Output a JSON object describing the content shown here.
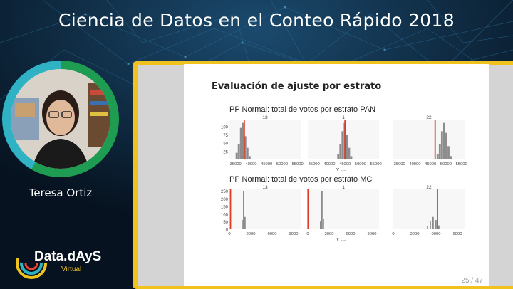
{
  "header": {
    "title": "Ciencia de Datos en el Conteo Rápido 2018"
  },
  "speaker": {
    "name": "Teresa Ortiz"
  },
  "brand": {
    "name": "Data.dAyS",
    "sub": "Virtual",
    "colors": {
      "yellow": "#f0c21e",
      "green": "#1e9d52",
      "teal": "#2fb3c4",
      "red": "#e8452c"
    }
  },
  "slide": {
    "title": "Evaluación de ajuste por estrato",
    "page": "25 / 47",
    "xlabel_main": "y",
    "xlabel_sub": "rep"
  },
  "chart_data": [
    {
      "type": "histogram",
      "title": "PP Normal: total de votos por estrato PAN",
      "yticks": [
        25,
        50,
        75,
        100
      ],
      "xlabel": "yrep",
      "panels": [
        {
          "strata": "13",
          "xticks": [
            35000,
            40000,
            45000,
            50000,
            55000
          ],
          "observed": 37800,
          "bins": [
            [
              35000,
              20
            ],
            [
              35700,
              45
            ],
            [
              36400,
              95
            ],
            [
              37100,
              110
            ],
            [
              37800,
              70
            ],
            [
              38500,
              35
            ],
            [
              39200,
              10
            ]
          ]
        },
        {
          "strata": "1",
          "xticks": [
            35000,
            40000,
            45000,
            50000,
            55000
          ],
          "observed": 45000,
          "bins": [
            [
              42500,
              15
            ],
            [
              43200,
              45
            ],
            [
              43900,
              85
            ],
            [
              44600,
              110
            ],
            [
              45300,
              75
            ],
            [
              46000,
              35
            ],
            [
              46700,
              10
            ]
          ]
        },
        {
          "strata": "22",
          "xticks": [
            35000,
            40000,
            45000,
            50000,
            55000
          ],
          "observed": 46500,
          "bins": [
            [
              47000,
              15
            ],
            [
              47700,
              45
            ],
            [
              48400,
              85
            ],
            [
              49100,
              110
            ],
            [
              49800,
              80
            ],
            [
              50500,
              40
            ],
            [
              51200,
              10
            ]
          ]
        }
      ]
    },
    {
      "type": "histogram",
      "title": "PP Normal: total de votos por estrato MC",
      "yticks": [
        0,
        50,
        100,
        150,
        200,
        250
      ],
      "xlabel": "yrep",
      "panels": [
        {
          "strata": "13",
          "xticks": [
            0,
            3000,
            6000,
            9000
          ],
          "observed": 150,
          "bins": [
            [
              1700,
              60
            ],
            [
              1900,
              250
            ],
            [
              2100,
              80
            ]
          ]
        },
        {
          "strata": "1",
          "xticks": [
            0,
            3000,
            6000,
            9000
          ],
          "observed": 30,
          "bins": [
            [
              1700,
              50
            ],
            [
              1900,
              250
            ],
            [
              2100,
              70
            ]
          ]
        },
        {
          "strata": "22",
          "xticks": [
            0,
            3000,
            6000,
            9000
          ],
          "observed": 6200,
          "bins": [
            [
              4700,
              20
            ],
            [
              5100,
              55
            ],
            [
              5500,
              80
            ],
            [
              5900,
              60
            ],
            [
              6300,
              25
            ]
          ]
        }
      ]
    }
  ]
}
